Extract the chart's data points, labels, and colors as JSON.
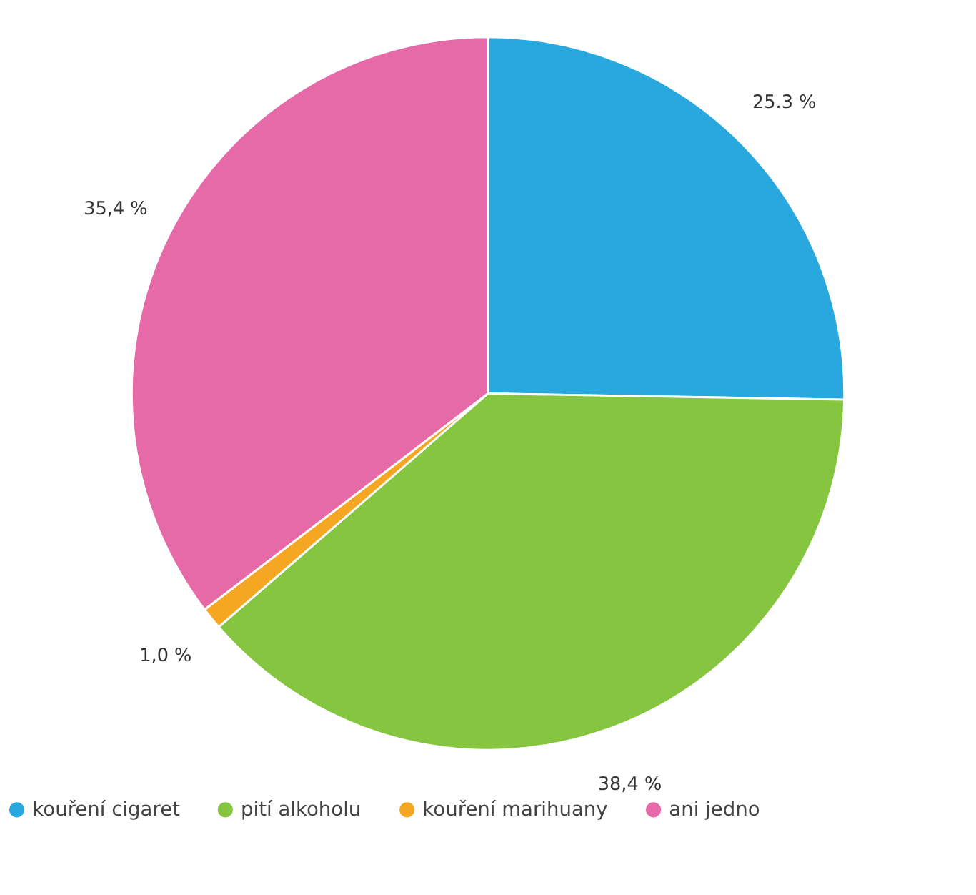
{
  "chart_data": {
    "type": "pie",
    "categories": [
      "kouření cigaret",
      "pití alkoholu",
      "kouření marihuany",
      "ani jedno"
    ],
    "values": [
      25.3,
      38.4,
      1.0,
      35.4
    ],
    "colors": [
      "#29a8e0",
      "#86c540",
      "#f5a623",
      "#e66aa8"
    ],
    "value_labels": [
      "25.3 %",
      "38,4 %",
      "1,0 %",
      "35,4 %"
    ],
    "legend": "bottom"
  }
}
